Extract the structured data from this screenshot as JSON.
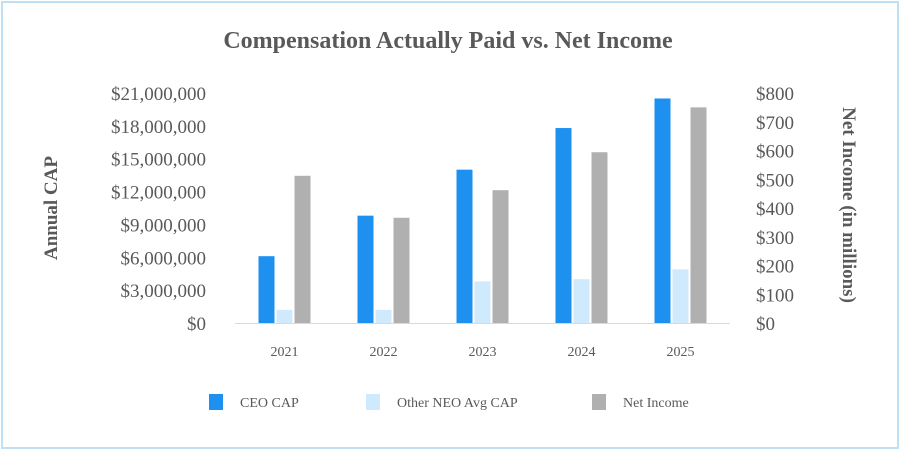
{
  "chart_data": {
    "type": "bar",
    "title": "Compensation Actually Paid vs. Net Income",
    "ylabel_left": "Annual CAP",
    "ylabel_right": "Net Income (in millions)",
    "categories": [
      "2021",
      "2022",
      "2023",
      "2024",
      "2025"
    ],
    "ylim_left": [
      0,
      21000000
    ],
    "ylim_right": [
      0,
      800
    ],
    "yticks_left": [
      "$0",
      "$3,000,000",
      "$6,000,000",
      "$9,000,000",
      "$12,000,000",
      "$15,000,000",
      "$18,000,000",
      "$21,000,000"
    ],
    "yticks_right": [
      "$0",
      "$100",
      "$200",
      "$300",
      "$400",
      "$500",
      "$600",
      "$700",
      "$800"
    ],
    "grid": false,
    "legend_position": "bottom",
    "series": [
      {
        "name": "CEO CAP",
        "axis": "left",
        "color": "#1e90f0",
        "values": [
          6100000,
          9800000,
          14000000,
          17800000,
          20500000
        ]
      },
      {
        "name": "Other NEO Avg CAP",
        "axis": "left",
        "color": "#cfeafc",
        "values": [
          1200000,
          1200000,
          3800000,
          4000000,
          4900000
        ]
      },
      {
        "name": "Net Income",
        "axis": "right",
        "color": "#b0b0b0",
        "values": [
          512,
          366,
          462,
          594,
          750
        ]
      }
    ]
  }
}
